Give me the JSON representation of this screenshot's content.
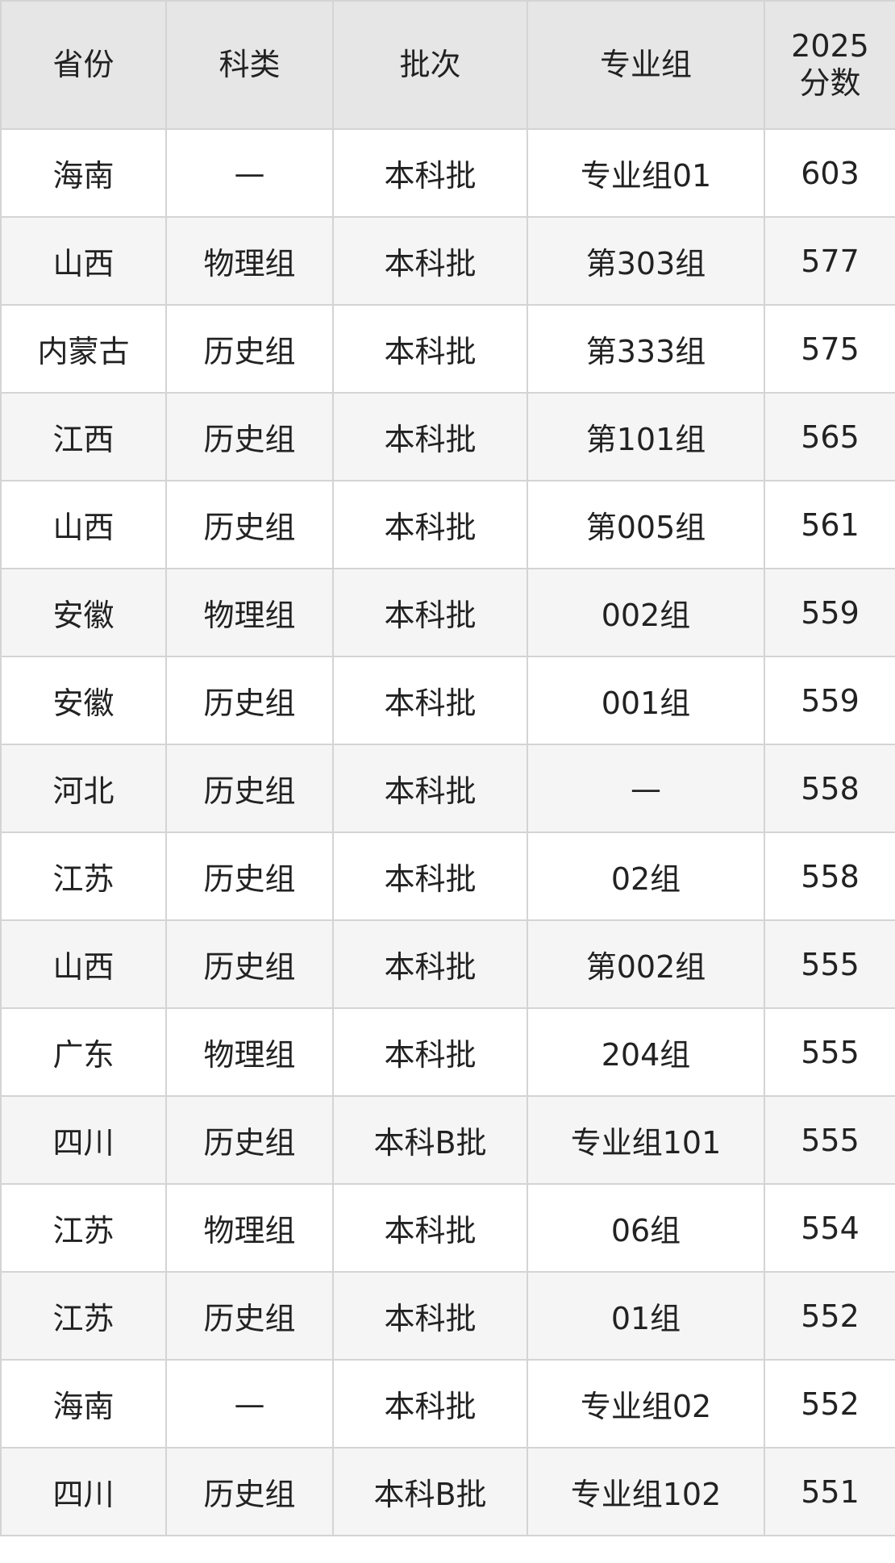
{
  "headers": [
    "省份",
    "科类",
    "批次",
    "专业组",
    "2025\n分数"
  ],
  "header_score_line1": "2025",
  "header_score_line2": "分数",
  "rows": [
    [
      "海南",
      "—",
      "本科批",
      "专业组01",
      "603"
    ],
    [
      "山西",
      "物理组",
      "本科批",
      "第303组",
      "577"
    ],
    [
      "内蒙古",
      "历史组",
      "本科批",
      "第333组",
      "575"
    ],
    [
      "江西",
      "历史组",
      "本科批",
      "第101组",
      "565"
    ],
    [
      "山西",
      "历史组",
      "本科批",
      "第005组",
      "561"
    ],
    [
      "安徽",
      "物理组",
      "本科批",
      "002组",
      "559"
    ],
    [
      "安徽",
      "历史组",
      "本科批",
      "001组",
      "559"
    ],
    [
      "河北",
      "历史组",
      "本科批",
      "—",
      "558"
    ],
    [
      "江苏",
      "历史组",
      "本科批",
      "02组",
      "558"
    ],
    [
      "山西",
      "历史组",
      "本科批",
      "第002组",
      "555"
    ],
    [
      "广东",
      "物理组",
      "本科批",
      "204组",
      "555"
    ],
    [
      "四川",
      "历史组",
      "本科B批",
      "专业组101",
      "555"
    ],
    [
      "江苏",
      "物理组",
      "本科批",
      "06组",
      "554"
    ],
    [
      "江苏",
      "历史组",
      "本科批",
      "01组",
      "552"
    ],
    [
      "海南",
      "—",
      "本科批",
      "专业组02",
      "552"
    ],
    [
      "四川",
      "历史组",
      "本科B批",
      "专业组102",
      "551"
    ]
  ]
}
